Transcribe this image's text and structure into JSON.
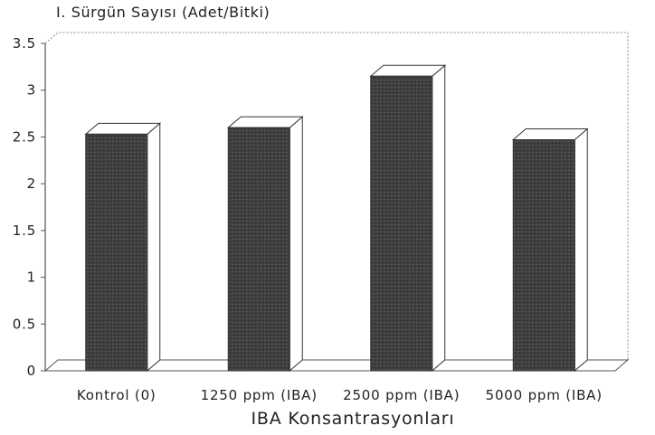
{
  "chart_data": {
    "type": "bar",
    "title": "",
    "ylabel": "I. Sürgün Sayısı (Adet/Bitki)",
    "xlabel": "IBA Konsantrasyonları",
    "categories": [
      "Kontrol (0)",
      "1250 ppm (IBA)",
      "2500 ppm (IBA)",
      "5000 ppm (IBA)"
    ],
    "values": [
      2.53,
      2.6,
      3.15,
      2.47
    ],
    "ylim": [
      0,
      3.5
    ],
    "yticks": [
      "0",
      "0.5",
      "1",
      "1.5",
      "2",
      "2.5",
      "3",
      "3.5"
    ],
    "grid": false,
    "style": "3d",
    "colors": {
      "bar": "#3c3c3c",
      "bar_side": "#ffffff",
      "outline": "#333333"
    }
  }
}
